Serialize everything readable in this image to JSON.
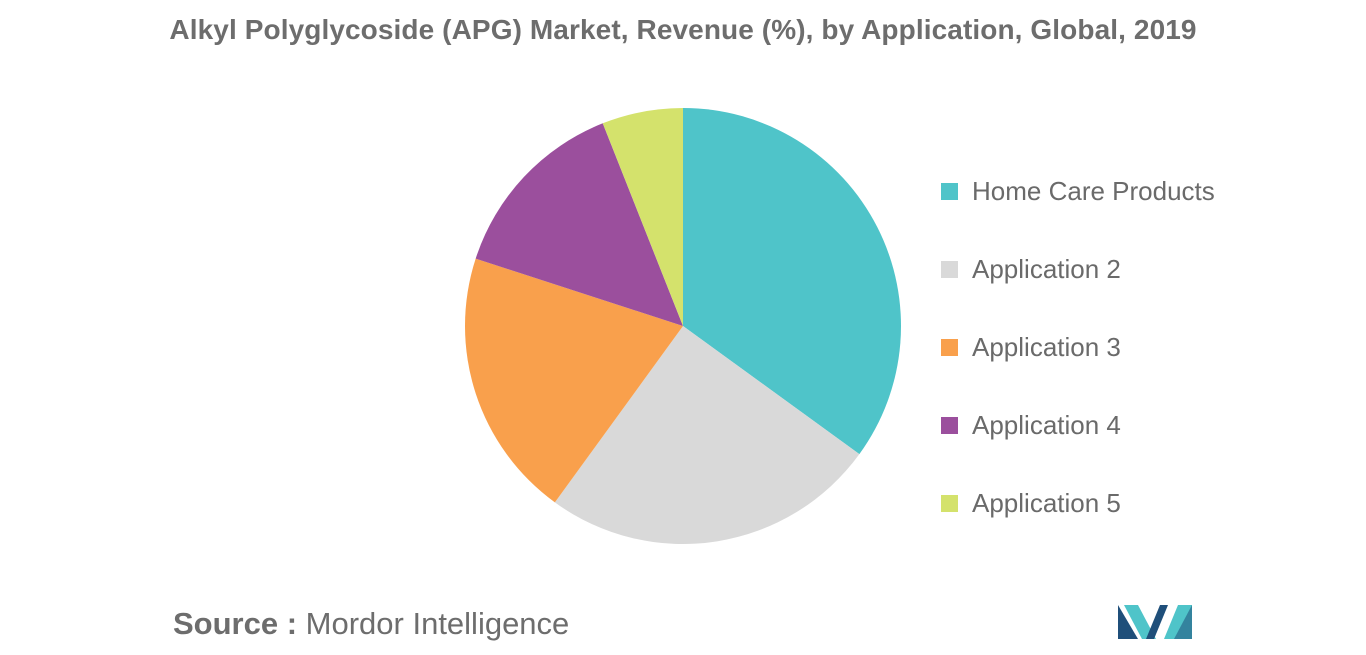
{
  "chart_data": {
    "type": "pie",
    "title": "Alkyl Polyglycoside (APG) Market, Revenue (%), by Application, Global, 2019",
    "categories": [
      "Home Care Products",
      "Application 2",
      "Application 3",
      "Application 4",
      "Application 5"
    ],
    "values": [
      35,
      25,
      20,
      14,
      6
    ],
    "colors": [
      "#4fc4c9",
      "#d9d9d9",
      "#f9a04c",
      "#9b4f9d",
      "#d4e26c"
    ],
    "legend_position": "right",
    "start_angle": "top, clockwise"
  },
  "source": {
    "prefix": "Source :",
    "value": "Mordor Intelligence"
  },
  "logo": {
    "icon": "mordor-intelligence-logo",
    "colors": [
      "#1f4f7a",
      "#4fc4c9"
    ]
  }
}
